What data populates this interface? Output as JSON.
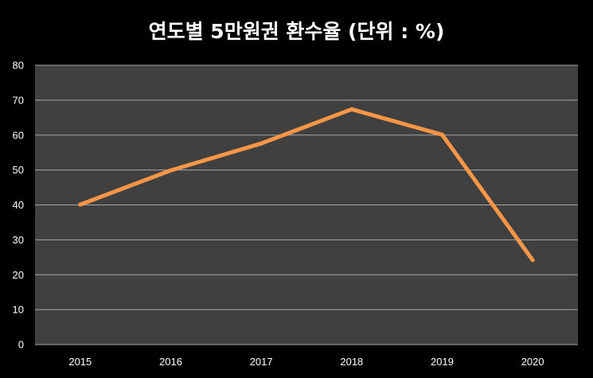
{
  "chart_data": {
    "type": "line",
    "title": "연도별 5만원권 환수율  (단위 : %)",
    "xlabel": "",
    "ylabel": "",
    "categories": [
      "2015",
      "2016",
      "2017",
      "2018",
      "2019",
      "2020"
    ],
    "series": [
      {
        "values": [
          40.1,
          49.9,
          57.6,
          67.4,
          60.1,
          24.2
        ]
      }
    ],
    "ylim": [
      0,
      80
    ],
    "yticks": [
      0,
      10,
      20,
      30,
      40,
      50,
      60,
      70,
      80
    ],
    "grid": true,
    "legend": "none"
  },
  "colors": {
    "background": "#000000",
    "plot_area": "#404040",
    "gridline": "#a6a6a6",
    "line": "#f79646",
    "text": "#ffffff"
  }
}
